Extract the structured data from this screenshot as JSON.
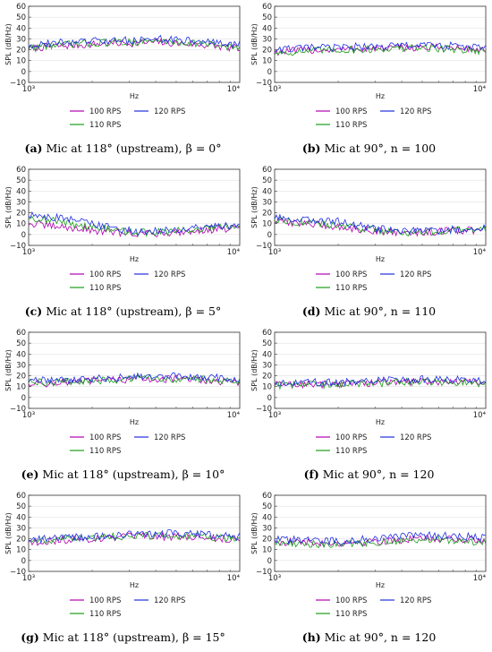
{
  "legend_labels": [
    "100 RPS",
    "110 RPS",
    "120 RPS"
  ],
  "colors": {
    "100 RPS": "#b000b0",
    "110 RPS": "#1a9e1a",
    "120 RPS": "#1f2fe0"
  },
  "chart_data": [
    {
      "type": "line",
      "panel": "a",
      "caption": {
        "letter": "(a)",
        "text": "Mic at 118° (upstream), β = 0°"
      },
      "xlabel": "Hz",
      "ylabel": "SPL (dB/Hz)",
      "xscale": "log",
      "xlim": [
        1000,
        10000
      ],
      "ylim": [
        -10,
        60
      ],
      "xticks": [
        1000,
        10000
      ],
      "xtick_labels": [
        "10³",
        "10⁴"
      ],
      "yticks": [
        -10,
        0,
        10,
        20,
        30,
        40,
        50,
        60
      ],
      "x": [
        1000,
        1259,
        1585,
        1995,
        2512,
        3162,
        3981,
        5012,
        6310,
        7943,
        10000
      ],
      "series": [
        {
          "name": "100 RPS",
          "values": [
            21,
            23,
            24,
            25,
            26,
            26,
            27,
            26,
            25,
            23,
            21
          ]
        },
        {
          "name": "110 RPS",
          "values": [
            22,
            24,
            25,
            26,
            27,
            27,
            28,
            27,
            26,
            24,
            22
          ]
        },
        {
          "name": "120 RPS",
          "values": [
            24,
            26,
            27,
            28,
            28,
            29,
            30,
            29,
            28,
            26,
            25
          ]
        }
      ]
    },
    {
      "type": "line",
      "panel": "b",
      "caption": {
        "letter": "(b)",
        "text": "Mic at 90°, n = 100"
      },
      "xlabel": "Hz",
      "ylabel": "SPL (dB/Hz)",
      "xscale": "log",
      "xlim": [
        1000,
        10000
      ],
      "ylim": [
        -10,
        60
      ],
      "xticks": [
        1000,
        10000
      ],
      "xtick_labels": [
        "10³",
        "10⁴"
      ],
      "yticks": [
        -10,
        0,
        10,
        20,
        30,
        40,
        50,
        60
      ],
      "x": [
        1000,
        1259,
        1585,
        1995,
        2512,
        3162,
        3981,
        5012,
        6310,
        7943,
        10000
      ],
      "series": [
        {
          "name": "100 RPS",
          "values": [
            18,
            19,
            20,
            20,
            21,
            21,
            22,
            22,
            22,
            21,
            20
          ]
        },
        {
          "name": "110 RPS",
          "values": [
            17,
            18,
            19,
            20,
            20,
            21,
            21,
            22,
            21,
            20,
            19
          ]
        },
        {
          "name": "120 RPS",
          "values": [
            20,
            21,
            22,
            22,
            23,
            23,
            24,
            24,
            24,
            23,
            22
          ]
        }
      ]
    },
    {
      "type": "line",
      "panel": "c",
      "caption": {
        "letter": "(c)",
        "text": "Mic at 118° (upstream), β = 5°"
      },
      "xlabel": "Hz",
      "ylabel": "SPL (dB/Hz)",
      "xscale": "log",
      "xlim": [
        1000,
        10000
      ],
      "ylim": [
        -10,
        60
      ],
      "xticks": [
        1000,
        10000
      ],
      "xtick_labels": [
        "10³",
        "10⁴"
      ],
      "yticks": [
        -10,
        0,
        10,
        20,
        30,
        40,
        50,
        60
      ],
      "x": [
        1000,
        1259,
        1585,
        1995,
        2512,
        3162,
        3981,
        5012,
        6310,
        7943,
        10000
      ],
      "series": [
        {
          "name": "100 RPS",
          "values": [
            10,
            8,
            6,
            4,
            2,
            1,
            1,
            2,
            4,
            5,
            5
          ]
        },
        {
          "name": "110 RPS",
          "values": [
            16,
            13,
            10,
            7,
            4,
            2,
            2,
            3,
            5,
            6,
            7
          ]
        },
        {
          "name": "120 RPS",
          "values": [
            18,
            16,
            14,
            10,
            6,
            3,
            3,
            4,
            6,
            8,
            8
          ]
        }
      ]
    },
    {
      "type": "line",
      "panel": "d",
      "caption": {
        "letter": "(d)",
        "text": "Mic at 90°, n = 110"
      },
      "xlabel": "Hz",
      "ylabel": "SPL (dB/Hz)",
      "xscale": "log",
      "xlim": [
        1000,
        10000
      ],
      "ylim": [
        -10,
        60
      ],
      "xticks": [
        1000,
        10000
      ],
      "xtick_labels": [
        "10³",
        "10⁴"
      ],
      "yticks": [
        -10,
        0,
        10,
        20,
        30,
        40,
        50,
        60
      ],
      "x": [
        1000,
        1259,
        1585,
        1995,
        2512,
        3162,
        3981,
        5012,
        6310,
        7943,
        10000
      ],
      "series": [
        {
          "name": "100 RPS",
          "values": [
            12,
            11,
            9,
            7,
            5,
            3,
            2,
            2,
            3,
            4,
            4
          ]
        },
        {
          "name": "110 RPS",
          "values": [
            14,
            12,
            10,
            8,
            6,
            4,
            2,
            2,
            3,
            4,
            5
          ]
        },
        {
          "name": "120 RPS",
          "values": [
            15,
            14,
            13,
            12,
            8,
            5,
            3,
            3,
            4,
            5,
            6
          ]
        }
      ]
    },
    {
      "type": "line",
      "panel": "e",
      "caption": {
        "letter": "(e)",
        "text": "Mic at 118° (upstream), β = 10°"
      },
      "xlabel": "Hz",
      "ylabel": "SPL (dB/Hz)",
      "xscale": "log",
      "xlim": [
        1000,
        10000
      ],
      "ylim": [
        -10,
        60
      ],
      "xticks": [
        1000,
        10000
      ],
      "xtick_labels": [
        "10³",
        "10⁴"
      ],
      "yticks": [
        -10,
        0,
        10,
        20,
        30,
        40,
        50,
        60
      ],
      "x": [
        1000,
        1259,
        1585,
        1995,
        2512,
        3162,
        3981,
        5012,
        6310,
        7943,
        10000
      ],
      "series": [
        {
          "name": "100 RPS",
          "values": [
            13,
            13,
            14,
            15,
            16,
            17,
            17,
            17,
            16,
            15,
            14
          ]
        },
        {
          "name": "110 RPS",
          "values": [
            14,
            14,
            15,
            15,
            16,
            17,
            18,
            17,
            17,
            16,
            15
          ]
        },
        {
          "name": "120 RPS",
          "values": [
            15,
            16,
            16,
            17,
            18,
            19,
            20,
            20,
            19,
            18,
            17
          ]
        }
      ]
    },
    {
      "type": "line",
      "panel": "f",
      "caption": {
        "letter": "(f)",
        "text": "Mic at 90°, n = 120"
      },
      "xlabel": "Hz",
      "ylabel": "SPL (dB/Hz)",
      "xscale": "log",
      "xlim": [
        1000,
        10000
      ],
      "ylim": [
        -10,
        60
      ],
      "xticks": [
        1000,
        10000
      ],
      "xtick_labels": [
        "10³",
        "10⁴"
      ],
      "yticks": [
        -10,
        0,
        10,
        20,
        30,
        40,
        50,
        60
      ],
      "x": [
        1000,
        1259,
        1585,
        1995,
        2512,
        3162,
        3981,
        5012,
        6310,
        7943,
        10000
      ],
      "series": [
        {
          "name": "100 RPS",
          "values": [
            12,
            12,
            12,
            13,
            13,
            14,
            14,
            15,
            15,
            14,
            14
          ]
        },
        {
          "name": "110 RPS",
          "values": [
            11,
            12,
            12,
            12,
            13,
            13,
            14,
            14,
            14,
            14,
            13
          ]
        },
        {
          "name": "120 RPS",
          "values": [
            13,
            14,
            14,
            14,
            15,
            16,
            16,
            17,
            17,
            16,
            16
          ]
        }
      ]
    },
    {
      "type": "line",
      "panel": "g",
      "caption": {
        "letter": "(g)",
        "text": "Mic at 118° (upstream), β = 15°"
      },
      "xlabel": "Hz",
      "ylabel": "SPL (dB/Hz)",
      "xscale": "log",
      "xlim": [
        1000,
        10000
      ],
      "ylim": [
        -10,
        60
      ],
      "xticks": [
        1000,
        10000
      ],
      "xtick_labels": [
        "10³",
        "10⁴"
      ],
      "yticks": [
        -10,
        0,
        10,
        20,
        30,
        40,
        50,
        60
      ],
      "x": [
        1000,
        1259,
        1585,
        1995,
        2512,
        3162,
        3981,
        5012,
        6310,
        7943,
        10000
      ],
      "series": [
        {
          "name": "100 RPS",
          "values": [
            17,
            18,
            19,
            20,
            21,
            22,
            22,
            22,
            21,
            20,
            19
          ]
        },
        {
          "name": "110 RPS",
          "values": [
            18,
            19,
            20,
            21,
            22,
            22,
            23,
            22,
            22,
            21,
            20
          ]
        },
        {
          "name": "120 RPS",
          "values": [
            19,
            20,
            21,
            22,
            23,
            24,
            25,
            25,
            24,
            23,
            22
          ]
        }
      ]
    },
    {
      "type": "line",
      "panel": "h",
      "caption": {
        "letter": "(h)",
        "text": "Mic at 90°, n = 120"
      },
      "xlabel": "Hz",
      "ylabel": "SPL (dB/Hz)",
      "xscale": "log",
      "xlim": [
        1000,
        10000
      ],
      "ylim": [
        -10,
        60
      ],
      "xticks": [
        1000,
        10000
      ],
      "xtick_labels": [
        "10³",
        "10⁴"
      ],
      "yticks": [
        -10,
        0,
        10,
        20,
        30,
        40,
        50,
        60
      ],
      "x": [
        1000,
        1259,
        1585,
        1995,
        2512,
        3162,
        3981,
        5012,
        6310,
        7943,
        10000
      ],
      "series": [
        {
          "name": "100 RPS",
          "values": [
            17,
            17,
            16,
            16,
            17,
            18,
            19,
            20,
            20,
            19,
            18
          ]
        },
        {
          "name": "110 RPS",
          "values": [
            16,
            16,
            15,
            15,
            16,
            17,
            18,
            19,
            19,
            18,
            17
          ]
        },
        {
          "name": "120 RPS",
          "values": [
            19,
            19,
            18,
            18,
            19,
            21,
            22,
            23,
            23,
            22,
            21
          ]
        }
      ]
    }
  ]
}
